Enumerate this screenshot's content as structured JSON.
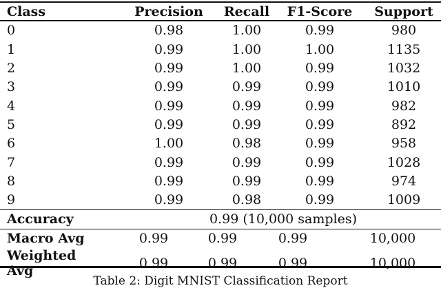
{
  "table": {
    "caption": "Table 2: Digit MNIST Classification Report",
    "columns": [
      "Class",
      "Precision",
      "Recall",
      "F1-Score",
      "Support"
    ],
    "rows": [
      {
        "class": "0",
        "precision": "0.98",
        "recall": "1.00",
        "f1": "0.99",
        "support": "980"
      },
      {
        "class": "1",
        "precision": "0.99",
        "recall": "1.00",
        "f1": "1.00",
        "support": "1135"
      },
      {
        "class": "2",
        "precision": "0.99",
        "recall": "1.00",
        "f1": "0.99",
        "support": "1032"
      },
      {
        "class": "3",
        "precision": "0.99",
        "recall": "0.99",
        "f1": "0.99",
        "support": "1010"
      },
      {
        "class": "4",
        "precision": "0.99",
        "recall": "0.99",
        "f1": "0.99",
        "support": "982"
      },
      {
        "class": "5",
        "precision": "0.99",
        "recall": "0.99",
        "f1": "0.99",
        "support": "892"
      },
      {
        "class": "6",
        "precision": "1.00",
        "recall": "0.98",
        "f1": "0.99",
        "support": "958"
      },
      {
        "class": "7",
        "precision": "0.99",
        "recall": "0.99",
        "f1": "0.99",
        "support": "1028"
      },
      {
        "class": "8",
        "precision": "0.99",
        "recall": "0.99",
        "f1": "0.99",
        "support": "974"
      },
      {
        "class": "9",
        "precision": "0.99",
        "recall": "0.98",
        "f1": "0.99",
        "support": "1009"
      }
    ],
    "accuracy": {
      "label": "Accuracy",
      "value": "0.99 (10,000 samples)"
    },
    "summary_rows": [
      {
        "label": "Macro Avg",
        "precision": "0.99",
        "recall": "0.99",
        "f1": "0.99",
        "support": "10,000"
      },
      {
        "label": "Weighted Avg",
        "precision": "0.99",
        "recall": "0.99",
        "f1": "0.99",
        "support": "10,000"
      }
    ]
  },
  "colors": {
    "background": "#ffffff",
    "text": "#111111",
    "rule": "#111111"
  }
}
